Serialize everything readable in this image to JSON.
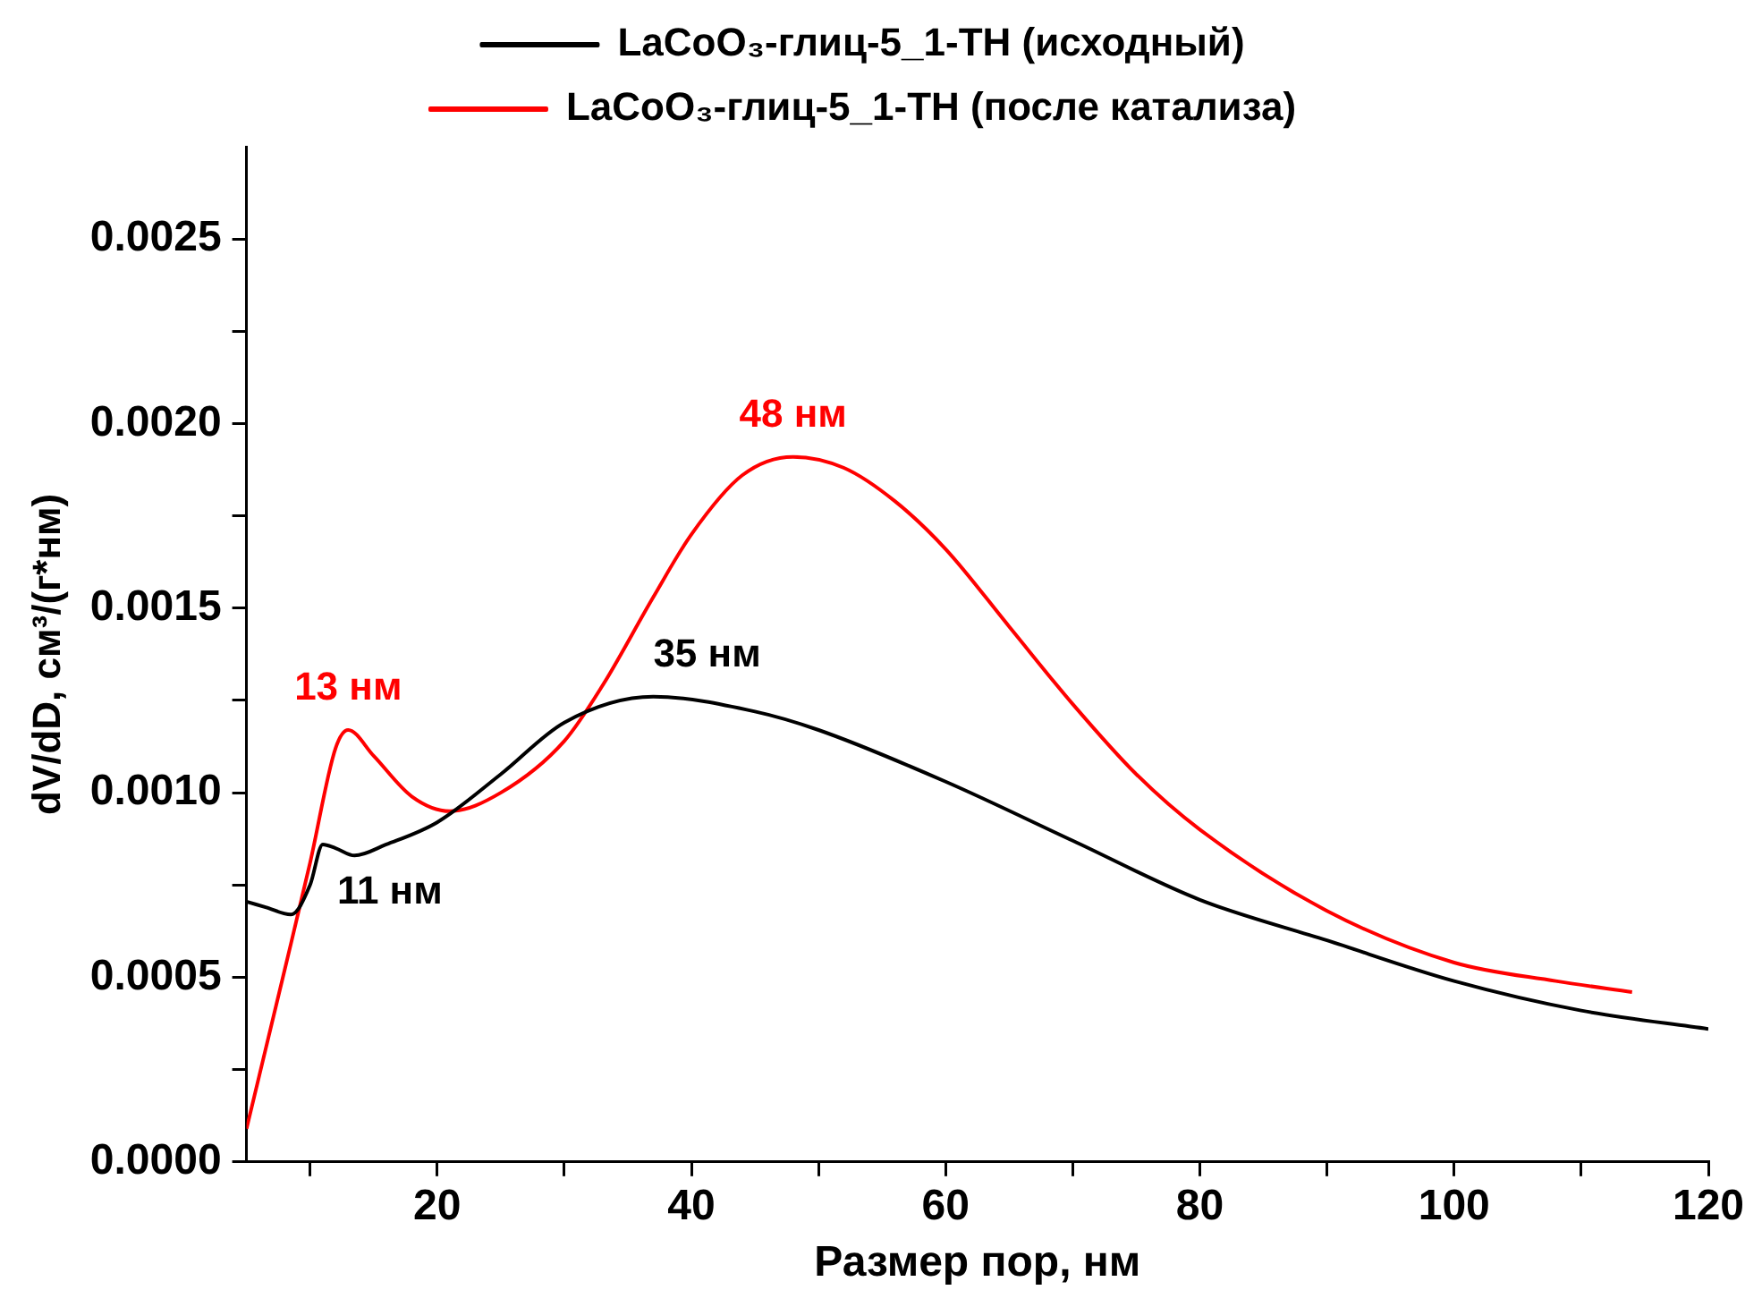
{
  "chart_data": {
    "type": "line",
    "xlabel": "Размер пор, нм",
    "ylabel": "dV/dD, см³/(г*нм)",
    "xlim": [
      5,
      120
    ],
    "ylim": [
      0,
      0.00275
    ],
    "xticks": [
      {
        "value": 10,
        "label": null
      },
      20,
      {
        "value": 30,
        "label": null
      },
      40,
      {
        "value": 50,
        "label": null
      },
      60,
      {
        "value": 70,
        "label": null
      },
      80,
      {
        "value": 90,
        "label": null
      },
      100,
      {
        "value": 110,
        "label": null
      },
      120
    ],
    "yticks": [
      {
        "value": 0,
        "label": "0.0000"
      },
      {
        "value": 0.00025,
        "label": null
      },
      {
        "value": 0.0005,
        "label": "0.0005"
      },
      {
        "value": 0.00075,
        "label": null
      },
      {
        "value": 0.001,
        "label": "0.0010"
      },
      {
        "value": 0.00125,
        "label": null
      },
      {
        "value": 0.0015,
        "label": "0.0015"
      },
      {
        "value": 0.00175,
        "label": null
      },
      {
        "value": 0.002,
        "label": "0.0020"
      },
      {
        "value": 0.00225,
        "label": null
      },
      {
        "value": 0.0025,
        "label": "0.0025"
      }
    ],
    "grid": false,
    "legend": "top",
    "marker": "none",
    "line_style": "solid",
    "series": [
      {
        "name": "LaCoO₃-глиц-5_1-TH (исходный)",
        "color": "#000000",
        "x": [
          5,
          6.5,
          8.5,
          10,
          11,
          12,
          13.5,
          16,
          20,
          25,
          30,
          37,
          45,
          50,
          60,
          70,
          80,
          90,
          100,
          110,
          120
        ],
        "values": [
          0.000705,
          0.00069,
          0.00067,
          0.00075,
          0.00086,
          0.00085,
          0.00083,
          0.00086,
          0.00092,
          0.00105,
          0.00119,
          0.00126,
          0.00122,
          0.00117,
          0.00103,
          0.00087,
          0.00071,
          0.0006,
          0.00049,
          0.00041,
          0.00036
        ]
      },
      {
        "name": "LaCoO₃-глиц-5_1-TH (после катализа)",
        "color": "#ff0000",
        "x": [
          5,
          8,
          10,
          12,
          13,
          15,
          18,
          21,
          25,
          30,
          33,
          37,
          40,
          44,
          48,
          52,
          56,
          60,
          65,
          70,
          75,
          80,
          90,
          100,
          108,
          114
        ],
        "values": [
          9e-05,
          0.00052,
          0.00081,
          0.00112,
          0.00117,
          0.0011,
          0.00099,
          0.00095,
          0.001,
          0.00114,
          0.00129,
          0.00153,
          0.0017,
          0.00186,
          0.00191,
          0.00188,
          0.00179,
          0.00166,
          0.00145,
          0.00124,
          0.00105,
          0.0009,
          0.00068,
          0.00054,
          0.00049,
          0.00046
        ]
      }
    ],
    "annotations": [
      {
        "text": "13 нм",
        "x": 13,
        "y": 0.00117
      },
      {
        "text": "11 нм",
        "x": 11,
        "y": 0.00086
      },
      {
        "text": "35 нм",
        "x": 37,
        "y": 0.00126
      },
      {
        "text": "48 нм",
        "x": 48,
        "y": 0.00191
      }
    ]
  }
}
